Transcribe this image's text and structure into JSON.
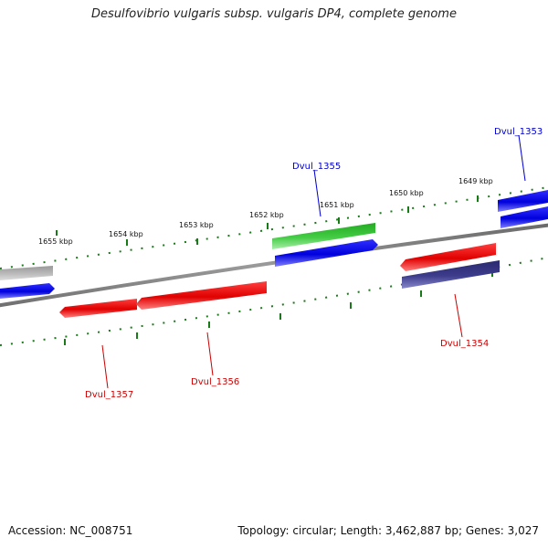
{
  "title": "Desulfovibrio vulgaris subsp. vulgaris DP4, complete genome",
  "footer": {
    "accession": "Accession: NC_008751",
    "summary": "Topology: circular; Length: 3,462,887 bp; Genes: 3,027"
  },
  "ticks": [
    {
      "label": "1655 kbp"
    },
    {
      "label": "1654 kbp"
    },
    {
      "label": "1653 kbp"
    },
    {
      "label": "1652 kbp"
    },
    {
      "label": "1651 kbp"
    },
    {
      "label": "1650 kbp"
    },
    {
      "label": "1649 kbp"
    }
  ],
  "gene_labels": [
    {
      "name": "Dvul_1353",
      "color": "#0000cc"
    },
    {
      "name": "Dvul_1355",
      "color": "#0000cc"
    },
    {
      "name": "Dvul_1354",
      "color": "#cc0000"
    },
    {
      "name": "Dvul_1356",
      "color": "#cc0000"
    },
    {
      "name": "Dvul_1357",
      "color": "#cc0000"
    }
  ],
  "colors": {
    "backbone": "#808080",
    "tick": "#1a7a1a",
    "red_feature": "#ee0000",
    "blue_feature": "#0000ee",
    "green_feature": "#33cc33",
    "gray_feature": "#aaaaaa",
    "navy_feature": "#3a3a88"
  }
}
